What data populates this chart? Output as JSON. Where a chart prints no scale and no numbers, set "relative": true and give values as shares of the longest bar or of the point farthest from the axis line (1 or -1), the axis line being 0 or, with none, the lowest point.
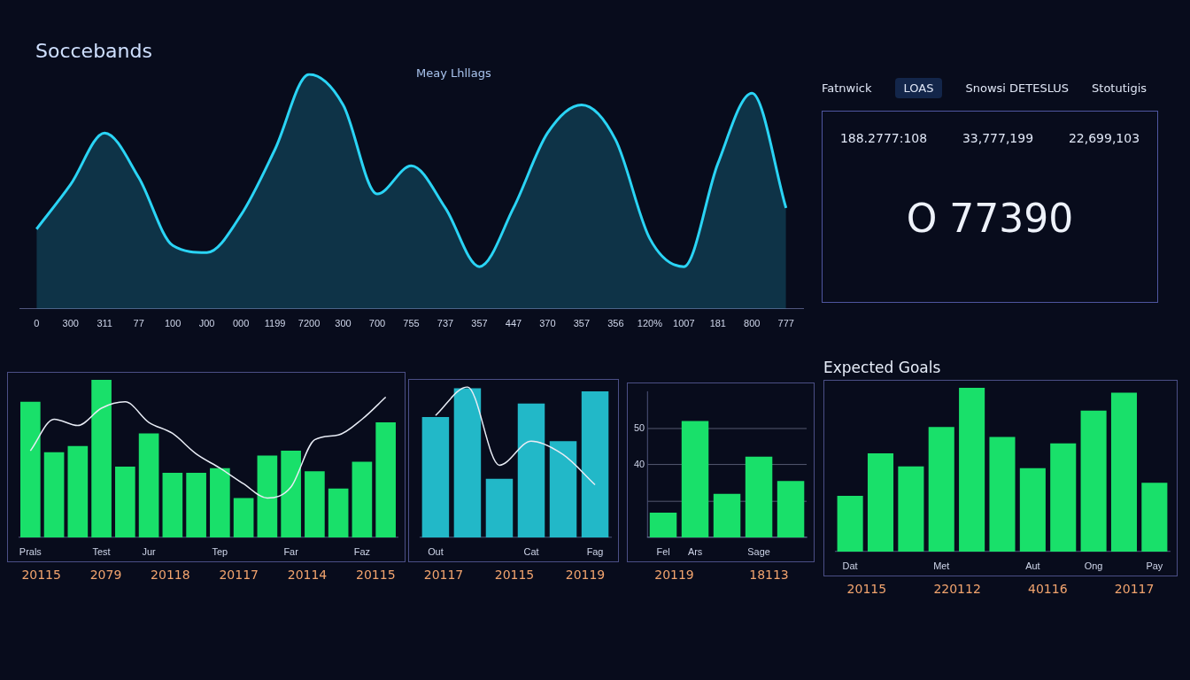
{
  "chart_data": [
    {
      "type": "area",
      "title": "Soccebands",
      "subtitle": "Meay Lhllags",
      "relative": true,
      "color": "#2ad4f5",
      "categories": [
        "0",
        "300",
        "311",
        "77",
        "100",
        "J00",
        "000",
        "1199",
        "7200",
        "300",
        "700",
        "755",
        "737",
        "357",
        "447",
        "370",
        "357",
        "356",
        "120%",
        "1007",
        "181",
        "800",
        "777"
      ],
      "values": [
        0.34,
        0.53,
        0.75,
        0.56,
        0.27,
        0.24,
        0.4,
        0.68,
        1,
        0.87,
        0.49,
        0.61,
        0.43,
        0.18,
        0.43,
        0.75,
        0.87,
        0.72,
        0.3,
        0.18,
        0.62,
        0.92,
        0.43
      ]
    },
    {
      "type": "other",
      "annotations": [
        "Fatnwick",
        "LOAS",
        "Snowsi DETESLUS",
        "Stotutigis",
        "188.2777:108",
        "33,777,199",
        "22,699,103",
        "O 77390"
      ]
    },
    {
      "type": "bar",
      "relative": true,
      "categories": [
        "Prals",
        null,
        null,
        "Test",
        null,
        "Jur",
        null,
        null,
        "Tep",
        null,
        null,
        "Far",
        null,
        null,
        "Faz",
        null
      ],
      "series": [
        {
          "type": "bar",
          "color": "#19e06a",
          "values": [
            0.86,
            0.54,
            0.58,
            1,
            0.45,
            0.66,
            0.41,
            0.41,
            0.44,
            0.25,
            0.52,
            0.55,
            0.42,
            0.31,
            0.48,
            0.73
          ]
        },
        {
          "type": "line",
          "color": "#e8ecf5",
          "values": [
            0.55,
            0.75,
            0.71,
            0.82,
            0.86,
            0.73,
            0.66,
            0.53,
            0.44,
            0.34,
            0.25,
            0.32,
            0.62,
            0.65,
            0.75,
            0.89
          ]
        }
      ],
      "annotations": [
        "20115",
        "2079",
        "20118",
        "20117",
        "20114",
        "20115"
      ]
    },
    {
      "type": "bar",
      "relative": true,
      "categories": [
        "Out",
        null,
        null,
        "Cat",
        null,
        "Fag"
      ],
      "series": [
        {
          "type": "bar",
          "color": "#22b8c8",
          "values": [
            0.8,
            0.99,
            0.39,
            0.89,
            0.64,
            0.97
          ]
        },
        {
          "type": "line",
          "color": "#e8ecf5",
          "values": [
            0.81,
            1,
            0.48,
            0.64,
            0.55,
            0.35
          ]
        }
      ],
      "annotations": [
        "20117",
        "20115",
        "20119"
      ]
    },
    {
      "type": "bar",
      "grid": "y",
      "color": "#19e06a",
      "categories": [
        "Fel",
        "Ars",
        null,
        "Sage",
        null
      ],
      "values": [
        26.8,
        52,
        32,
        42.2,
        35.5
      ],
      "ylim": [
        20,
        60
      ],
      "yticks": [
        {
          "value": 20,
          "label": null
        },
        {
          "value": 30,
          "label": null
        },
        40,
        50
      ],
      "annotations": [
        "20119",
        "18113"
      ]
    },
    {
      "type": "bar",
      "title": "Expected Goals",
      "relative": true,
      "color": "#19e06a",
      "categories": [
        "Dat",
        null,
        null,
        "Met",
        null,
        null,
        "Aut",
        null,
        "Ong",
        null,
        "Pay"
      ],
      "values": [
        0.34,
        0.6,
        0.52,
        0.76,
        1,
        0.7,
        0.51,
        0.66,
        0.86,
        0.97,
        0.42
      ],
      "annotations": [
        "20115",
        "220112",
        "40116",
        "20117"
      ]
    }
  ]
}
